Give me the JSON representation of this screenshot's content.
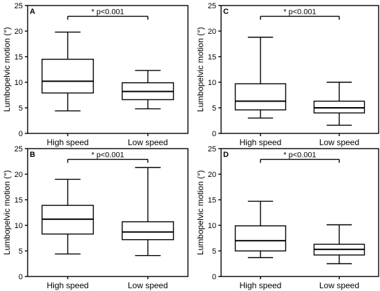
{
  "chart_data": [
    {
      "type": "box",
      "panel": "A",
      "ylabel": "Lumbopelvic motion (°)",
      "ylim": [
        0,
        25
      ],
      "yticks": [
        0,
        5,
        10,
        15,
        20,
        25
      ],
      "categories": [
        "High speed",
        "Low speed"
      ],
      "boxes": [
        {
          "category": "High speed",
          "whisker_low": 4.4,
          "q1": 7.9,
          "median": 10.2,
          "q3": 14.5,
          "whisker_high": 19.8
        },
        {
          "category": "Low speed",
          "whisker_low": 4.8,
          "q1": 6.6,
          "median": 8.2,
          "q3": 9.9,
          "whisker_high": 12.3
        }
      ],
      "significance": {
        "label": "* p<0.001",
        "y": 22.9
      }
    },
    {
      "type": "box",
      "panel": "C",
      "ylabel": "Lumbopelvic motion (°)",
      "ylim": [
        0,
        25
      ],
      "yticks": [
        0,
        5,
        10,
        15,
        20,
        25
      ],
      "categories": [
        "High speed",
        "Low speed"
      ],
      "boxes": [
        {
          "category": "High speed",
          "whisker_low": 3.0,
          "q1": 4.6,
          "median": 6.3,
          "q3": 9.7,
          "whisker_high": 18.8
        },
        {
          "category": "Low speed",
          "whisker_low": 1.6,
          "q1": 4.0,
          "median": 5.0,
          "q3": 6.3,
          "whisker_high": 10.0
        }
      ],
      "significance": {
        "label": "* p<0.001",
        "y": 22.9
      }
    },
    {
      "type": "box",
      "panel": "B",
      "ylabel": "Lumbopelvic motion (°)",
      "ylim": [
        0,
        25
      ],
      "yticks": [
        0,
        5,
        10,
        15,
        20,
        25
      ],
      "categories": [
        "High speed",
        "Low speed"
      ],
      "boxes": [
        {
          "category": "High speed",
          "whisker_low": 4.4,
          "q1": 8.3,
          "median": 11.2,
          "q3": 13.9,
          "whisker_high": 19.0
        },
        {
          "category": "Low speed",
          "whisker_low": 4.1,
          "q1": 7.2,
          "median": 8.7,
          "q3": 10.7,
          "whisker_high": 21.3
        }
      ],
      "significance": {
        "label": "* p<0.001",
        "y": 22.9
      }
    },
    {
      "type": "box",
      "panel": "D",
      "ylabel": "Lumbopelvic motion (°)",
      "ylim": [
        0,
        25
      ],
      "yticks": [
        0,
        5,
        10,
        15,
        20,
        25
      ],
      "categories": [
        "High speed",
        "Low speed"
      ],
      "boxes": [
        {
          "category": "High speed",
          "whisker_low": 3.7,
          "q1": 5.0,
          "median": 7.0,
          "q3": 9.9,
          "whisker_high": 14.7
        },
        {
          "category": "Low speed",
          "whisker_low": 2.5,
          "q1": 4.2,
          "median": 5.3,
          "q3": 6.3,
          "whisker_high": 10.1
        }
      ],
      "significance": {
        "label": "* p<0.001",
        "y": 22.9
      }
    }
  ]
}
